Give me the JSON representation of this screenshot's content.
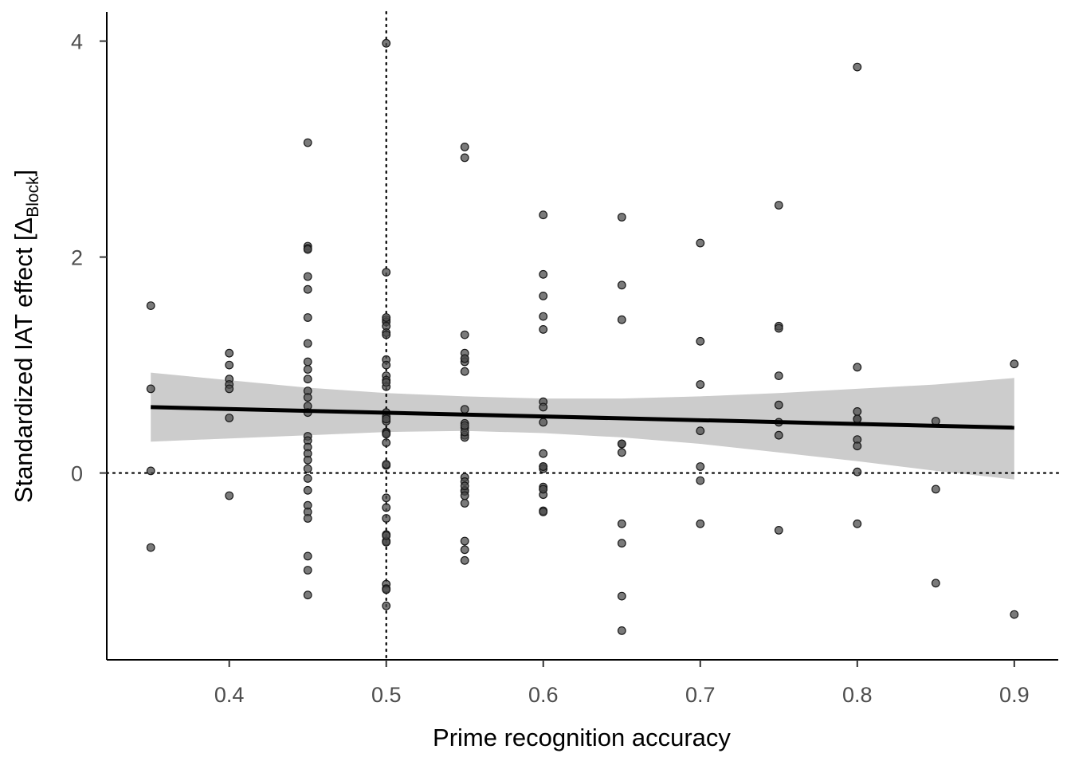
{
  "chart_data": {
    "type": "scatter",
    "title": "",
    "xlabel": "Prime recognition accuracy",
    "ylabel": {
      "main": "Standardized IAT effect [Δ",
      "subscript": "Block",
      "close": "]"
    },
    "xlim": [
      0.322,
      0.928
    ],
    "ylim": [
      -1.73,
      4.27
    ],
    "xticks": [
      "0.4",
      "0.5",
      "0.6",
      "0.7",
      "0.8",
      "0.9"
    ],
    "xtick_values": [
      0.4,
      0.5,
      0.6,
      0.7,
      0.8,
      0.9
    ],
    "yticks": [
      "0",
      "2",
      "4"
    ],
    "ytick_values": [
      0,
      2,
      4
    ],
    "grid": false,
    "reference_lines": {
      "vertical_x": 0.5,
      "horizontal_y": 0
    },
    "point_color": "#4d4d4d",
    "line_color": "#000000",
    "band_color": "#cccccc",
    "points": {
      "x": [
        0.35,
        0.35,
        0.35,
        0.35,
        0.4,
        0.4,
        0.4,
        0.4,
        0.4,
        0.4,
        0.4,
        0.45,
        0.45,
        0.45,
        0.45,
        0.45,
        0.45,
        0.45,
        0.45,
        0.45,
        0.45,
        0.45,
        0.45,
        0.45,
        0.45,
        0.45,
        0.45,
        0.45,
        0.45,
        0.45,
        0.45,
        0.45,
        0.45,
        0.45,
        0.45,
        0.45,
        0.45,
        0.45,
        0.45,
        0.45,
        0.5,
        0.5,
        0.5,
        0.5,
        0.5,
        0.5,
        0.5,
        0.5,
        0.5,
        0.5,
        0.5,
        0.5,
        0.5,
        0.5,
        0.5,
        0.5,
        0.5,
        0.5,
        0.5,
        0.5,
        0.5,
        0.5,
        0.5,
        0.5,
        0.5,
        0.5,
        0.5,
        0.5,
        0.5,
        0.5,
        0.5,
        0.5,
        0.5,
        0.5,
        0.5,
        0.55,
        0.55,
        0.55,
        0.55,
        0.55,
        0.55,
        0.55,
        0.55,
        0.55,
        0.55,
        0.55,
        0.55,
        0.55,
        0.55,
        0.55,
        0.55,
        0.55,
        0.55,
        0.55,
        0.55,
        0.55,
        0.55,
        0.55,
        0.55,
        0.55,
        0.6,
        0.6,
        0.6,
        0.6,
        0.6,
        0.6,
        0.6,
        0.6,
        0.6,
        0.6,
        0.6,
        0.6,
        0.6,
        0.6,
        0.6,
        0.6,
        0.6,
        0.6,
        0.65,
        0.65,
        0.65,
        0.65,
        0.65,
        0.65,
        0.65,
        0.65,
        0.65,
        0.65,
        0.7,
        0.7,
        0.7,
        0.7,
        0.7,
        0.7,
        0.7,
        0.75,
        0.75,
        0.75,
        0.75,
        0.75,
        0.75,
        0.75,
        0.75,
        0.8,
        0.8,
        0.8,
        0.8,
        0.8,
        0.8,
        0.8,
        0.8,
        0.8,
        0.85,
        0.85,
        0.85,
        0.9,
        0.9
      ],
      "y": [
        1.55,
        0.78,
        0.02,
        -0.69,
        1.11,
        1.0,
        0.87,
        0.82,
        0.78,
        0.51,
        -0.21,
        3.06,
        2.1,
        2.08,
        1.82,
        1.7,
        1.44,
        1.2,
        1.03,
        0.96,
        0.87,
        0.76,
        0.7,
        0.62,
        0.56,
        0.34,
        0.3,
        0.24,
        0.18,
        0.12,
        0.04,
        -0.05,
        -0.16,
        -0.3,
        -0.36,
        -0.42,
        -0.77,
        -0.9,
        -1.13,
        2.07,
        3.98,
        1.86,
        1.42,
        1.4,
        1.36,
        1.3,
        1.28,
        1.05,
        1.0,
        0.9,
        0.86,
        0.8,
        0.56,
        0.52,
        0.48,
        0.38,
        0.37,
        0.28,
        0.07,
        -0.23,
        -0.32,
        -0.42,
        -0.57,
        -0.63,
        -0.64,
        -1.03,
        -1.07,
        -1.23,
        1.44,
        0.84,
        0.5,
        -0.58,
        -1.08,
        0.08,
        0.36,
        3.02,
        2.92,
        1.28,
        1.11,
        1.06,
        1.03,
        0.94,
        0.59,
        0.46,
        0.42,
        0.35,
        0.33,
        -0.04,
        -0.08,
        -0.16,
        -0.17,
        -0.21,
        -0.28,
        -0.63,
        -0.71,
        -0.81,
        0.38,
        0.44,
        -0.12,
        1.06,
        2.39,
        1.84,
        1.64,
        1.45,
        1.33,
        0.66,
        0.61,
        0.47,
        0.18,
        0.06,
        0.04,
        -0.13,
        -0.15,
        -0.2,
        -0.35,
        -0.36,
        -0.15,
        0.06,
        2.37,
        1.74,
        1.42,
        0.27,
        0.19,
        -0.47,
        -0.65,
        -1.14,
        -1.46,
        0.27,
        2.13,
        1.22,
        0.82,
        0.39,
        0.06,
        -0.07,
        -0.47,
        2.48,
        1.36,
        1.34,
        0.9,
        0.63,
        0.47,
        0.35,
        -0.53,
        3.76,
        0.98,
        0.57,
        0.5,
        0.31,
        0.25,
        0.01,
        -0.47,
        0.5,
        0.48,
        -0.15,
        -1.02,
        1.01,
        -1.31
      ]
    },
    "fit": {
      "x": [
        0.35,
        0.9
      ],
      "y": [
        0.61,
        0.42
      ],
      "band_x": [
        0.35,
        0.4,
        0.45,
        0.5,
        0.55,
        0.6,
        0.65,
        0.7,
        0.75,
        0.8,
        0.85,
        0.9
      ],
      "band_upper": [
        0.93,
        0.86,
        0.79,
        0.74,
        0.71,
        0.69,
        0.69,
        0.71,
        0.74,
        0.78,
        0.82,
        0.88
      ],
      "band_lower": [
        0.29,
        0.32,
        0.35,
        0.38,
        0.39,
        0.37,
        0.33,
        0.27,
        0.19,
        0.11,
        0.02,
        -0.06
      ]
    }
  }
}
